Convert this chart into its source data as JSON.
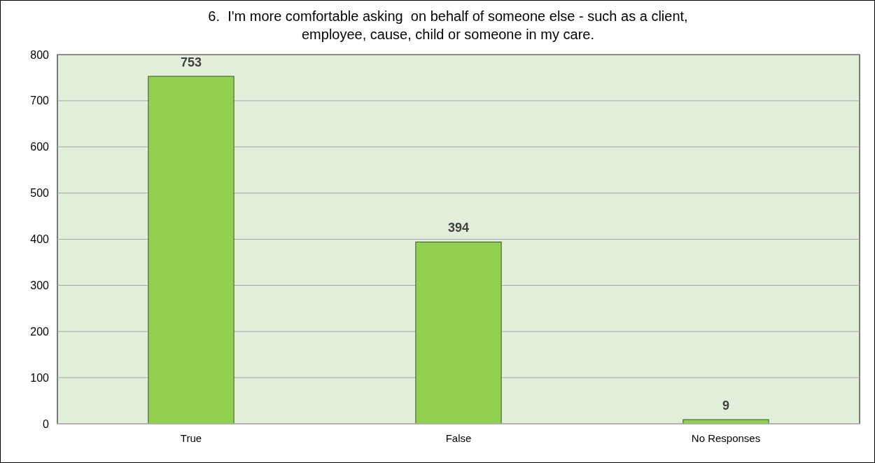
{
  "chart_data": {
    "type": "bar",
    "title": "6.  I'm more comfortable asking  on behalf of someone else - such as a client, employee, cause, child or someone in my care.",
    "categories": [
      "True",
      "False",
      "No Responses"
    ],
    "values": [
      753,
      394,
      9
    ],
    "color": "#92d050",
    "ylim": [
      0,
      800
    ],
    "yticks": [
      0,
      100,
      200,
      300,
      400,
      500,
      600,
      700,
      800
    ],
    "grid": "y",
    "data_labels": true
  }
}
